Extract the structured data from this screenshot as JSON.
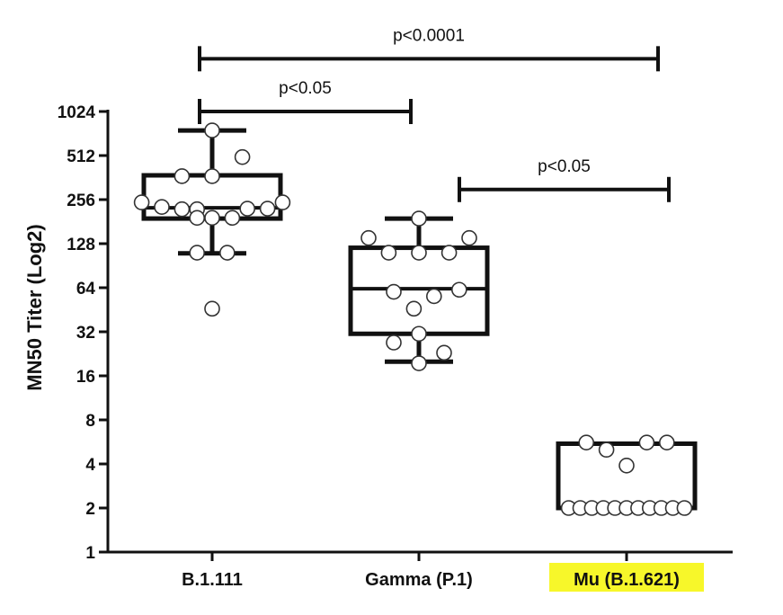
{
  "chart_data": {
    "type": "box",
    "ylabel": "MN50 Titer (Log2)",
    "xlabel": "",
    "title": "",
    "y_scale": "log2",
    "ylim": [
      1,
      1024
    ],
    "y_ticks": [
      {
        "value": 1,
        "label": "1"
      },
      {
        "value": 2,
        "label": "2"
      },
      {
        "value": 4,
        "label": "4"
      },
      {
        "value": 8,
        "label": "8"
      },
      {
        "value": 16,
        "label": "16"
      },
      {
        "value": 32,
        "label": "32"
      },
      {
        "value": 64,
        "label": "64"
      },
      {
        "value": 128,
        "label": "128"
      },
      {
        "value": 256,
        "label": "256"
      },
      {
        "value": 512,
        "label": "512"
      },
      {
        "value": 1024,
        "label": "1024"
      }
    ],
    "categories": [
      "B.1.111",
      "Gamma (P.1)",
      "Mu (B.1.621)"
    ],
    "highlight_category": "Mu (B.1.621)",
    "highlight_color": "#f7f72a",
    "groups": [
      {
        "name": "B.1.111",
        "box": {
          "q1": 190,
          "median": 225,
          "q3": 375,
          "whisker_low": 110,
          "whisker_high": 760
        },
        "points": [
          {
            "offset": 0.0,
            "value": 760
          },
          {
            "offset": 0.6,
            "value": 500
          },
          {
            "offset": -0.6,
            "value": 370
          },
          {
            "offset": 0.0,
            "value": 370
          },
          {
            "offset": -1.4,
            "value": 245
          },
          {
            "offset": -1.0,
            "value": 228
          },
          {
            "offset": -0.6,
            "value": 220
          },
          {
            "offset": -0.3,
            "value": 220
          },
          {
            "offset": 0.7,
            "value": 222
          },
          {
            "offset": 1.1,
            "value": 222
          },
          {
            "offset": 1.4,
            "value": 245
          },
          {
            "offset": -0.3,
            "value": 192
          },
          {
            "offset": 0.0,
            "value": 192
          },
          {
            "offset": 0.4,
            "value": 192
          },
          {
            "offset": -0.3,
            "value": 111
          },
          {
            "offset": 0.3,
            "value": 111
          },
          {
            "offset": 0.0,
            "value": 46
          }
        ]
      },
      {
        "name": "Gamma (P.1)",
        "box": {
          "q1": 31,
          "median": 63,
          "q3": 120,
          "whisker_low": 20,
          "whisker_high": 190
        },
        "points": [
          {
            "offset": 0.0,
            "value": 190
          },
          {
            "offset": -1.0,
            "value": 140
          },
          {
            "offset": 1.0,
            "value": 140
          },
          {
            "offset": -0.6,
            "value": 111
          },
          {
            "offset": 0.0,
            "value": 111
          },
          {
            "offset": 0.6,
            "value": 111
          },
          {
            "offset": -0.5,
            "value": 60
          },
          {
            "offset": 0.3,
            "value": 56
          },
          {
            "offset": 0.8,
            "value": 62
          },
          {
            "offset": -0.1,
            "value": 46
          },
          {
            "offset": 0.0,
            "value": 31
          },
          {
            "offset": -0.5,
            "value": 27
          },
          {
            "offset": 0.5,
            "value": 23
          },
          {
            "offset": 0.0,
            "value": 19.5
          }
        ]
      },
      {
        "name": "Mu (B.1.621)",
        "box": {
          "q1": 2,
          "median": 2,
          "q3": 5.5,
          "whisker_low": 2,
          "whisker_high": 5.5
        },
        "points": [
          {
            "offset": -0.8,
            "value": 5.6
          },
          {
            "offset": -0.4,
            "value": 5.0
          },
          {
            "offset": 0.0,
            "value": 3.9
          },
          {
            "offset": 0.4,
            "value": 5.6
          },
          {
            "offset": 0.8,
            "value": 5.6
          },
          {
            "offset": -1.15,
            "value": 2
          },
          {
            "offset": -0.92,
            "value": 2
          },
          {
            "offset": -0.69,
            "value": 2
          },
          {
            "offset": -0.46,
            "value": 2
          },
          {
            "offset": -0.23,
            "value": 2
          },
          {
            "offset": 0.0,
            "value": 2
          },
          {
            "offset": 0.23,
            "value": 2
          },
          {
            "offset": 0.46,
            "value": 2
          },
          {
            "offset": 0.69,
            "value": 2
          },
          {
            "offset": 0.92,
            "value": 2
          },
          {
            "offset": 1.15,
            "value": 2
          }
        ]
      }
    ],
    "comparisons": [
      {
        "from": "B.1.111",
        "to": "Mu (B.1.621)",
        "label": "p<0.0001",
        "level": 1536
      },
      {
        "from": "B.1.111",
        "to": "Gamma (P.1)",
        "label": "p<0.05",
        "level": 1024
      },
      {
        "from": "Gamma (P.1)",
        "to": "Mu (B.1.621)",
        "label": "p<0.05",
        "level": 300
      }
    ]
  }
}
